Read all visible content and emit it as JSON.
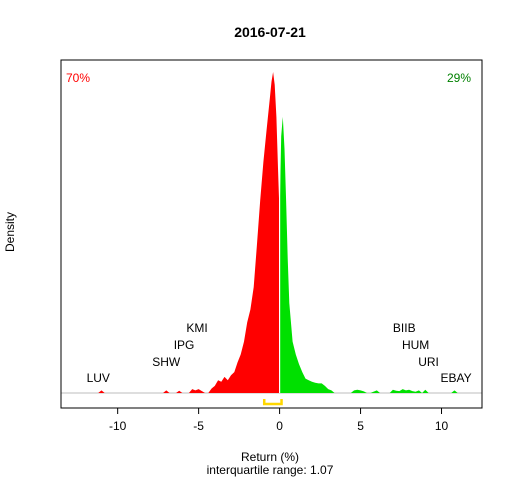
{
  "chart_data": {
    "type": "area",
    "title": "2016-07-21",
    "xlabel": "Return (%)",
    "ylabel": "Density",
    "subtitle": "interquartile range: 1.07",
    "xlim": [
      -13.5,
      12.5
    ],
    "ylim": [
      0,
      1.0
    ],
    "xticks": [
      -10,
      -5,
      0,
      5,
      10
    ],
    "grid": false,
    "legend": "none",
    "split_x": 0,
    "share_negative": "70%",
    "share_positive": "29%",
    "colors": {
      "negative": "#ff0000",
      "positive": "#00e000",
      "iqr": "#ffd700",
      "baseline": "#bebebe"
    },
    "iqr": [
      -0.95,
      0.12
    ],
    "density": {
      "x": [
        -11.2,
        -11.0,
        -10.8,
        -10.0,
        -7.2,
        -7.0,
        -6.8,
        -6.4,
        -6.2,
        -6.0,
        -5.6,
        -5.4,
        -5.2,
        -5.0,
        -4.8,
        -4.6,
        -4.4,
        -4.2,
        -4.0,
        -3.8,
        -3.6,
        -3.4,
        -3.2,
        -3.0,
        -2.8,
        -2.6,
        -2.4,
        -2.2,
        -2.0,
        -1.8,
        -1.6,
        -1.4,
        -1.2,
        -1.0,
        -0.8,
        -0.6,
        -0.5,
        -0.4,
        -0.3,
        -0.2,
        -0.1,
        0.0,
        0.1,
        0.2,
        0.3,
        0.4,
        0.5,
        0.6,
        0.8,
        1.0,
        1.2,
        1.4,
        1.6,
        1.8,
        2.0,
        2.2,
        2.4,
        2.6,
        2.8,
        3.0,
        3.2,
        3.4,
        4.4,
        4.6,
        4.8,
        5.0,
        5.2,
        5.4,
        5.6,
        6.0,
        6.2,
        6.4,
        6.8,
        7.0,
        7.2,
        7.4,
        7.6,
        7.8,
        8.0,
        8.2,
        8.4,
        8.6,
        8.8,
        9.0,
        9.2,
        9.4,
        10.6,
        10.8,
        11.0
      ],
      "y": [
        0,
        0.008,
        0,
        0,
        0,
        0.008,
        0,
        0,
        0.007,
        0,
        0,
        0.012,
        0.008,
        0.012,
        0.006,
        0,
        0,
        0.014,
        0.022,
        0.04,
        0.035,
        0.05,
        0.04,
        0.055,
        0.065,
        0.095,
        0.12,
        0.16,
        0.22,
        0.26,
        0.33,
        0.46,
        0.6,
        0.72,
        0.82,
        0.92,
        0.97,
        1.0,
        0.96,
        0.86,
        0.7,
        0.55,
        0.8,
        0.86,
        0.76,
        0.6,
        0.42,
        0.28,
        0.16,
        0.12,
        0.09,
        0.065,
        0.045,
        0.04,
        0.035,
        0.032,
        0.03,
        0.03,
        0.022,
        0.012,
        0.008,
        0,
        0,
        0.008,
        0.01,
        0.008,
        0.005,
        0,
        0,
        0.008,
        0,
        0,
        0,
        0.01,
        0.007,
        0.006,
        0.012,
        0.008,
        0.01,
        0.006,
        0.004,
        0.008,
        0,
        0.01,
        0,
        0,
        0,
        0.008,
        0
      ]
    },
    "labels_left": [
      {
        "text": "LUV",
        "x": -11.2,
        "row": 0
      },
      {
        "text": "SHW",
        "x": -7.0,
        "row": 1
      },
      {
        "text": "IPG",
        "x": -5.9,
        "row": 2
      },
      {
        "text": "KMI",
        "x": -5.1,
        "row": 3
      }
    ],
    "labels_right": [
      {
        "text": "EBAY",
        "x": 10.9,
        "row": 0
      },
      {
        "text": "URI",
        "x": 9.2,
        "row": 1
      },
      {
        "text": "HUM",
        "x": 8.4,
        "row": 2
      },
      {
        "text": "BIIB",
        "x": 7.7,
        "row": 3
      }
    ]
  }
}
